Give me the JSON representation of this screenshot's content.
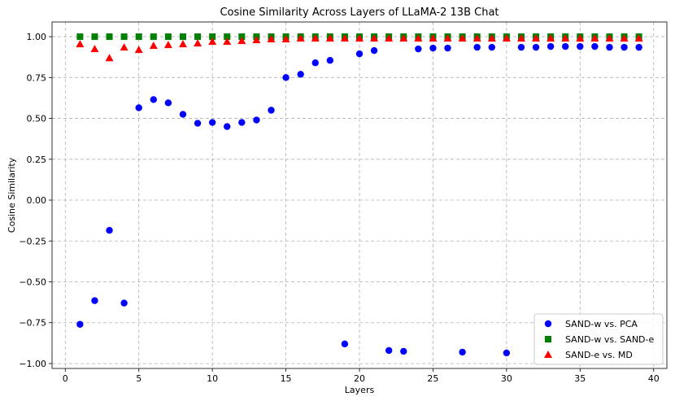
{
  "chart_data": {
    "type": "scatter",
    "title": "Cosine Similarity Across Layers of LLaMA-2 13B Chat",
    "xlabel": "Layers",
    "ylabel": "Cosine Similarity",
    "xlim": [
      -0.9,
      40.9
    ],
    "ylim": [
      -1.03,
      1.09
    ],
    "xticks": [
      0,
      5,
      10,
      15,
      20,
      25,
      30,
      35,
      40
    ],
    "yticks": [
      -1.0,
      -0.75,
      -0.5,
      -0.25,
      0.0,
      0.25,
      0.5,
      0.75,
      1.0
    ],
    "xtick_labels": [
      "0",
      "5",
      "10",
      "15",
      "20",
      "25",
      "30",
      "35",
      "40"
    ],
    "ytick_labels": [
      "−1.00",
      "−0.75",
      "−0.50",
      "−0.25",
      "0.00",
      "0.25",
      "0.50",
      "0.75",
      "1.00"
    ],
    "grid": true,
    "legend_position": "bottom-right",
    "x": [
      1,
      2,
      3,
      4,
      5,
      6,
      7,
      8,
      9,
      10,
      11,
      12,
      13,
      14,
      15,
      16,
      17,
      18,
      19,
      20,
      21,
      22,
      23,
      24,
      25,
      26,
      27,
      28,
      29,
      30,
      31,
      32,
      33,
      34,
      35,
      36,
      37,
      38,
      39
    ],
    "series": [
      {
        "name": "SAND-w vs. PCA",
        "marker": "circle",
        "color": "#0000ff",
        "values": [
          -0.76,
          -0.615,
          -0.185,
          -0.63,
          0.565,
          0.615,
          0.595,
          0.525,
          0.47,
          0.475,
          0.45,
          0.475,
          0.49,
          0.55,
          0.75,
          0.77,
          0.84,
          0.855,
          -0.88,
          0.895,
          0.915,
          -0.92,
          -0.925,
          0.925,
          0.93,
          0.93,
          -0.93,
          0.935,
          0.935,
          -0.935,
          0.935,
          0.935,
          0.94,
          0.94,
          0.94,
          0.94,
          0.935,
          0.935,
          0.935
        ]
      },
      {
        "name": "SAND-w vs. SAND-e",
        "marker": "square",
        "color": "#008000",
        "values": [
          1.0,
          1.0,
          1.0,
          1.0,
          1.0,
          1.0,
          1.0,
          1.0,
          1.0,
          1.0,
          1.0,
          1.0,
          1.0,
          1.0,
          1.0,
          1.0,
          1.0,
          1.0,
          1.0,
          1.0,
          1.0,
          1.0,
          1.0,
          1.0,
          1.0,
          1.0,
          1.0,
          1.0,
          1.0,
          1.0,
          1.0,
          1.0,
          1.0,
          1.0,
          1.0,
          1.0,
          1.0,
          1.0,
          1.0
        ]
      },
      {
        "name": "SAND-e vs. MD",
        "marker": "triangle",
        "color": "#ff0000",
        "values": [
          0.955,
          0.925,
          0.87,
          0.935,
          0.92,
          0.945,
          0.95,
          0.955,
          0.96,
          0.97,
          0.97,
          0.975,
          0.98,
          0.985,
          0.985,
          0.99,
          0.99,
          0.99,
          0.99,
          0.99,
          0.99,
          0.99,
          0.99,
          0.99,
          0.99,
          0.99,
          0.99,
          0.99,
          0.99,
          0.99,
          0.99,
          0.99,
          0.99,
          0.99,
          0.99,
          0.99,
          0.99,
          0.99,
          0.99
        ]
      }
    ]
  }
}
